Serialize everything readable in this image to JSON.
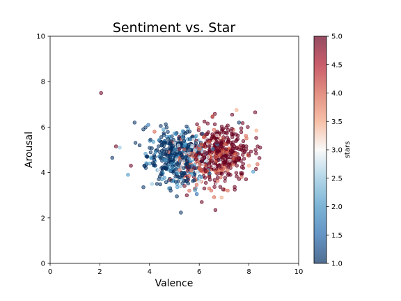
{
  "chart_data": {
    "type": "scatter",
    "title": "Sentiment vs. Star",
    "xlabel": "Valence",
    "ylabel": "Arousal",
    "xlim": [
      0,
      10
    ],
    "ylim": [
      0,
      10
    ],
    "xticks": [
      0,
      2,
      4,
      6,
      8,
      10
    ],
    "yticks": [
      0,
      2,
      4,
      6,
      8,
      10
    ],
    "grid": false,
    "colorbar": {
      "label": "stars",
      "range": [
        1.0,
        5.0
      ],
      "ticks": [
        "1.0",
        "1.5",
        "2.0",
        "2.5",
        "3.0",
        "3.5",
        "4.0",
        "4.5",
        "5.0"
      ],
      "colormap": "RdBu_r",
      "colors": [
        "#053061",
        "#2166ac",
        "#4393c3",
        "#92c5de",
        "#f7f7f7",
        "#f4a582",
        "#d6604d",
        "#b2182b",
        "#67001f"
      ]
    },
    "marker_alpha": 0.55,
    "points": [
      {
        "x": 2.05,
        "y": 7.5,
        "c": 5.0
      },
      {
        "x": 2.5,
        "y": 4.65,
        "c": 1.0
      },
      {
        "x": 2.65,
        "y": 5.15,
        "c": 5.0
      },
      {
        "x": 2.8,
        "y": 5.1,
        "c": 2.5
      },
      {
        "x": 3.25,
        "y": 4.3,
        "c": 5.0
      },
      {
        "x": 3.4,
        "y": 6.2,
        "c": 1.0
      },
      {
        "x": 3.6,
        "y": 5.2,
        "c": 1.0
      },
      {
        "x": 3.75,
        "y": 5.9,
        "c": 1.0
      },
      {
        "x": 3.85,
        "y": 4.2,
        "c": 1.0
      },
      {
        "x": 3.95,
        "y": 6.1,
        "c": 1.5
      },
      {
        "x": 4.1,
        "y": 3.5,
        "c": 2.5
      },
      {
        "x": 4.2,
        "y": 5.8,
        "c": 4.0
      },
      {
        "x": 4.3,
        "y": 3.5,
        "c": 1.0
      },
      {
        "x": 4.45,
        "y": 6.05,
        "c": 1.0
      },
      {
        "x": 4.5,
        "y": 3.7,
        "c": 2.0
      },
      {
        "x": 4.85,
        "y": 3.2,
        "c": 1.0
      },
      {
        "x": 5.1,
        "y": 2.95,
        "c": 1.0
      },
      {
        "x": 5.25,
        "y": 3.4,
        "c": 2.5
      },
      {
        "x": 5.5,
        "y": 3.0,
        "c": 5.0
      },
      {
        "x": 5.6,
        "y": 3.2,
        "c": 4.0
      },
      {
        "x": 5.9,
        "y": 3.05,
        "c": 1.5
      },
      {
        "x": 6.1,
        "y": 2.7,
        "c": 5.0
      },
      {
        "x": 6.4,
        "y": 3.3,
        "c": 4.0
      },
      {
        "x": 6.65,
        "y": 2.35,
        "c": 5.0
      },
      {
        "x": 6.9,
        "y": 2.9,
        "c": 3.5
      },
      {
        "x": 7.5,
        "y": 6.75,
        "c": 3.5
      },
      {
        "x": 7.7,
        "y": 3.8,
        "c": 4.0
      },
      {
        "x": 7.6,
        "y": 6.2,
        "c": 1.0
      },
      {
        "x": 7.9,
        "y": 5.5,
        "c": 4.0
      },
      {
        "x": 8.0,
        "y": 4.3,
        "c": 3.5
      },
      {
        "x": 8.25,
        "y": 6.65,
        "c": 5.0
      },
      {
        "x": 8.3,
        "y": 5.85,
        "c": 3.5
      },
      {
        "x": 8.35,
        "y": 5.15,
        "c": 5.0
      },
      {
        "x": 8.45,
        "y": 5.1,
        "c": 5.0
      }
    ],
    "clusters": [
      {
        "cx": 5.0,
        "cy": 4.75,
        "sx": 0.55,
        "sy": 0.55,
        "c": 1.0,
        "n": 340,
        "jitter": 0.7
      },
      {
        "cx": 5.55,
        "cy": 4.65,
        "sx": 0.5,
        "sy": 0.6,
        "c": 2.5,
        "n": 160,
        "jitter": 1.2
      },
      {
        "cx": 6.1,
        "cy": 4.55,
        "sx": 0.45,
        "sy": 0.6,
        "c": 3.5,
        "n": 140,
        "jitter": 1.0
      },
      {
        "cx": 6.85,
        "cy": 4.8,
        "sx": 0.55,
        "sy": 0.6,
        "c": 5.0,
        "n": 420,
        "jitter": 0.9
      }
    ]
  }
}
